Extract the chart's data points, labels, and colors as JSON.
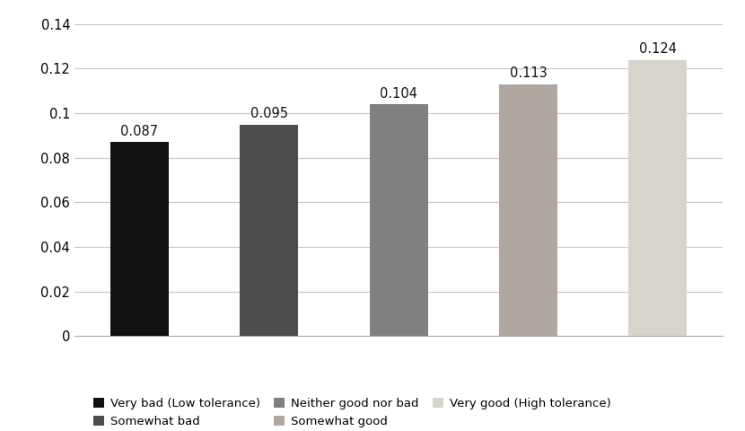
{
  "legend_labels": [
    "Very bad (Low tolerance)",
    "Somewhat bad",
    "Neither good nor bad",
    "Somewhat good",
    "Very good (High tolerance)"
  ],
  "values": [
    0.087,
    0.095,
    0.104,
    0.113,
    0.124
  ],
  "bar_colors": [
    "#111111",
    "#4d4d4d",
    "#808080",
    "#b0a8a0",
    "#d8d4cc"
  ],
  "bar_edge_colors": [
    "none",
    "none",
    "none",
    "none",
    "none"
  ],
  "ylim": [
    0,
    0.145
  ],
  "yticks": [
    0,
    0.02,
    0.04,
    0.06,
    0.08,
    0.1,
    0.12,
    0.14
  ],
  "ytick_labels": [
    "0",
    "0.02",
    "0.04",
    "0.06",
    "0.08",
    "0.1",
    "0.12",
    "0.14"
  ],
  "label_fontsize": 10.5,
  "legend_fontsize": 9.5,
  "background_color": "#ffffff",
  "grid_color": "#c8c8c8"
}
